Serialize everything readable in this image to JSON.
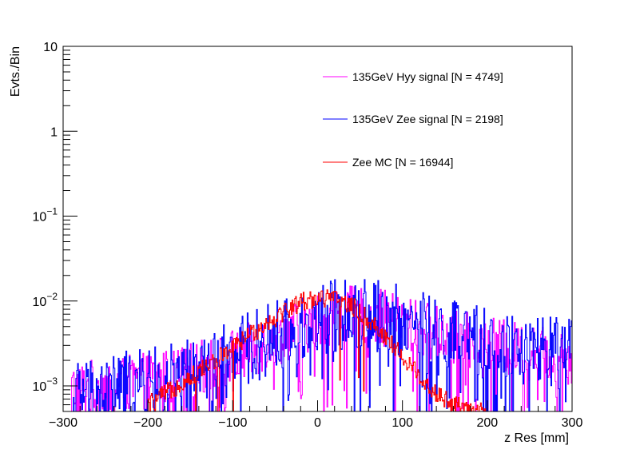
{
  "chart_data": {
    "type": "line",
    "title": "",
    "xlabel": "z Res [mm]",
    "ylabel": "Evts./Bin",
    "yscale": "log",
    "xlim": [
      -300,
      300
    ],
    "ylim": [
      0.0005,
      10
    ],
    "grid": false,
    "legend_position": "top-right",
    "x_ticks": [
      {
        "value": -300,
        "label": "−300"
      },
      {
        "value": -200,
        "label": "−200"
      },
      {
        "value": -100,
        "label": "−100"
      },
      {
        "value": 0,
        "label": "0"
      },
      {
        "value": 100,
        "label": "100"
      },
      {
        "value": 200,
        "label": "200"
      },
      {
        "value": 300,
        "label": "300"
      }
    ],
    "y_ticks": [
      {
        "value": 10,
        "base": "10",
        "exp": ""
      },
      {
        "value": 1,
        "base": "1",
        "exp": ""
      },
      {
        "value": 0.1,
        "base": "10",
        "exp": "−1"
      },
      {
        "value": 0.01,
        "base": "10",
        "exp": "−2"
      },
      {
        "value": 0.001,
        "base": "10",
        "exp": "−3"
      }
    ],
    "series": [
      {
        "name": "135GeV Hyy signal [N = 4749]",
        "color": "#ff00ff",
        "x": [
          -290,
          -250,
          -210,
          -170,
          -140,
          -110,
          -80,
          -50,
          -20,
          10,
          40,
          70,
          100,
          130,
          160,
          190,
          220,
          250,
          280,
          300
        ],
        "values": [
          0.0009,
          0.001,
          0.0011,
          0.0013,
          0.0016,
          0.002,
          0.0026,
          0.0036,
          0.005,
          0.0064,
          0.007,
          0.0066,
          0.0055,
          0.0045,
          0.0037,
          0.0032,
          0.0028,
          0.0025,
          0.0023,
          0.0022
        ],
        "noise": 0.35
      },
      {
        "name": "135GeV Zee signal [N = 2198]",
        "color": "#0000ff",
        "x": [
          -290,
          -250,
          -210,
          -170,
          -140,
          -110,
          -80,
          -50,
          -20,
          10,
          40,
          70,
          100,
          130,
          160,
          190,
          220,
          250,
          280,
          300
        ],
        "values": [
          0.0008,
          0.0009,
          0.001,
          0.0012,
          0.0015,
          0.002,
          0.0028,
          0.0038,
          0.0052,
          0.0066,
          0.0072,
          0.0068,
          0.0058,
          0.0047,
          0.0039,
          0.0033,
          0.0029,
          0.0026,
          0.0024,
          0.0023
        ],
        "noise": 0.45
      },
      {
        "name": "Zee MC [N = 16944]",
        "color": "#ff0000",
        "x": [
          -200,
          -180,
          -160,
          -140,
          -120,
          -100,
          -80,
          -60,
          -40,
          -20,
          0,
          20,
          40,
          60,
          80,
          100,
          120,
          140,
          160,
          180,
          200
        ],
        "values": [
          0.0006,
          0.0008,
          0.0011,
          0.0015,
          0.002,
          0.0028,
          0.004,
          0.0055,
          0.0075,
          0.0098,
          0.011,
          0.0105,
          0.0088,
          0.006,
          0.0038,
          0.0022,
          0.0013,
          0.0008,
          0.0006,
          0.0005,
          0.0005
        ],
        "noise": 0.12
      }
    ]
  }
}
